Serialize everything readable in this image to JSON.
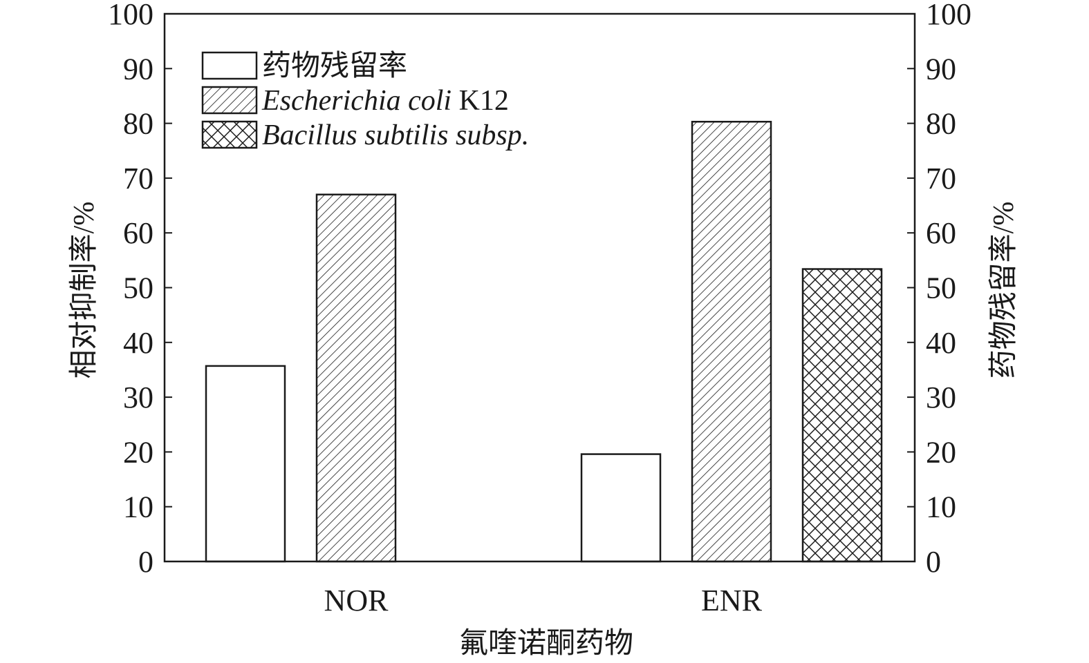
{
  "chart_data": {
    "type": "bar",
    "categories": [
      "NOR",
      "ENR"
    ],
    "series": [
      {
        "name": "药物残留率",
        "values": [
          35.7,
          19.6
        ],
        "pattern": "none"
      },
      {
        "name": "Escherichia coli K12",
        "name_italic": "Escherichia coli",
        "name_suffix": " K12",
        "values": [
          67.0,
          80.3
        ],
        "pattern": "diagonal-hatch"
      },
      {
        "name": "Bacillus subtilis subsp.",
        "values": [
          null,
          53.4
        ],
        "pattern": "cross-hatch"
      }
    ],
    "xlabel": "氟喹诺酮药物",
    "ylabel": "相对抑制率/%",
    "y2label": "药物残留率/%",
    "ylim": [
      0,
      100
    ],
    "y2lim": [
      0,
      100
    ],
    "yticks": [
      0,
      10,
      20,
      30,
      40,
      50,
      60,
      70,
      80,
      90,
      100
    ],
    "grid": false,
    "legend_position": "top-left",
    "colors": {
      "stroke": "#1a1a1a",
      "fill": "#ffffff"
    }
  }
}
